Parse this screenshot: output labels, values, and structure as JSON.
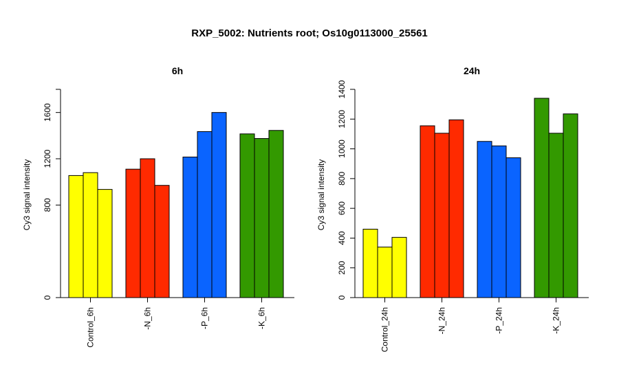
{
  "main_title": "RXP_5002: Nutrients root; Os10g0113000_25561",
  "chart_data": [
    {
      "type": "bar",
      "title": "6h",
      "ylabel": "Cy3 signal intensity",
      "xlabel": "",
      "ylim": [
        0,
        1800
      ],
      "yticks": [
        0,
        800,
        1200,
        1600
      ],
      "grid": false,
      "categories": [
        "Control_6h",
        "-N_6h",
        "-P_6h",
        "-K_6h"
      ],
      "colors": [
        "#ffff00",
        "#ff2a00",
        "#0a64ff",
        "#339900"
      ],
      "values": [
        [
          1055,
          1080,
          935
        ],
        [
          1110,
          1200,
          970
        ],
        [
          1215,
          1435,
          1600
        ],
        [
          1415,
          1375,
          1445
        ]
      ]
    },
    {
      "type": "bar",
      "title": "24h",
      "ylabel": "Cy3 signal intensity",
      "xlabel": "",
      "ylim": [
        0,
        1400
      ],
      "yticks": [
        0,
        200,
        400,
        600,
        800,
        1000,
        1200,
        1400
      ],
      "grid": false,
      "categories": [
        "Control_24h",
        "-N_24h",
        "-P_24h",
        "-K_24h"
      ],
      "colors": [
        "#ffff00",
        "#ff2a00",
        "#0a64ff",
        "#339900"
      ],
      "values": [
        [
          460,
          340,
          405
        ],
        [
          1155,
          1105,
          1195
        ],
        [
          1050,
          1020,
          940
        ],
        [
          1340,
          1105,
          1235
        ]
      ]
    }
  ]
}
